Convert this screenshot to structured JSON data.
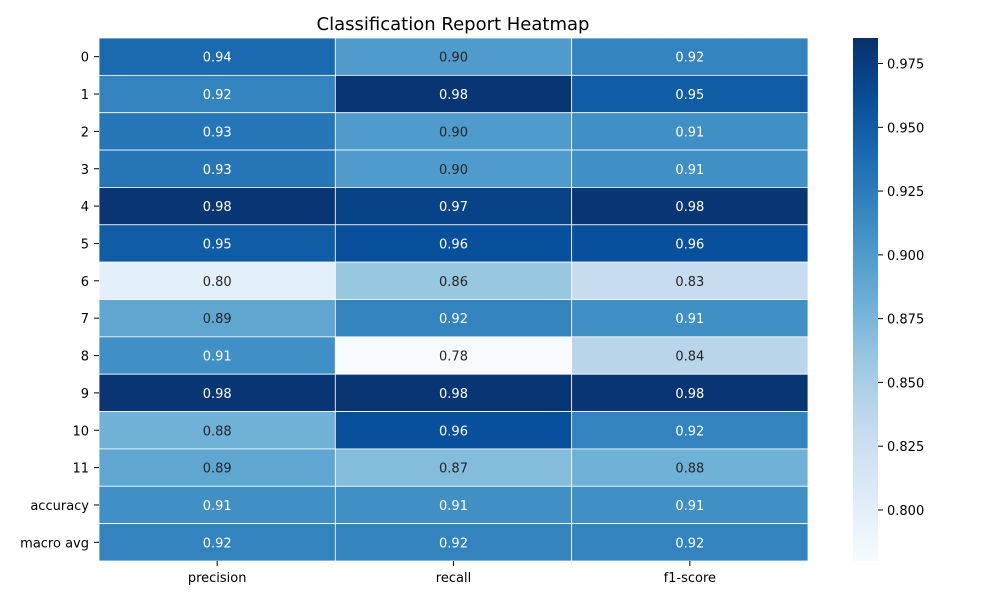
{
  "chart_data": {
    "type": "heatmap",
    "title": "Classification Report Heatmap",
    "xlabel": "",
    "ylabel": "",
    "columns": [
      "precision",
      "recall",
      "f1-score"
    ],
    "rows": [
      "0",
      "1",
      "2",
      "3",
      "4",
      "5",
      "6",
      "7",
      "8",
      "9",
      "10",
      "11",
      "accuracy",
      "macro avg"
    ],
    "values": [
      [
        0.94,
        0.9,
        0.92
      ],
      [
        0.92,
        0.98,
        0.95
      ],
      [
        0.93,
        0.9,
        0.91
      ],
      [
        0.93,
        0.9,
        0.91
      ],
      [
        0.98,
        0.97,
        0.98
      ],
      [
        0.95,
        0.96,
        0.96
      ],
      [
        0.8,
        0.86,
        0.83
      ],
      [
        0.89,
        0.92,
        0.91
      ],
      [
        0.91,
        0.78,
        0.84
      ],
      [
        0.98,
        0.98,
        0.98
      ],
      [
        0.88,
        0.96,
        0.92
      ],
      [
        0.89,
        0.87,
        0.88
      ],
      [
        0.91,
        0.91,
        0.91
      ],
      [
        0.92,
        0.92,
        0.92
      ]
    ],
    "value_format": "2 decimals",
    "colormap": "Blues",
    "color_range": [
      0.78,
      0.985
    ],
    "colorbar_ticks": [
      "0.800",
      "0.825",
      "0.850",
      "0.875",
      "0.900",
      "0.925",
      "0.950",
      "0.975"
    ],
    "grid": false,
    "legend": "colorbar-right"
  }
}
